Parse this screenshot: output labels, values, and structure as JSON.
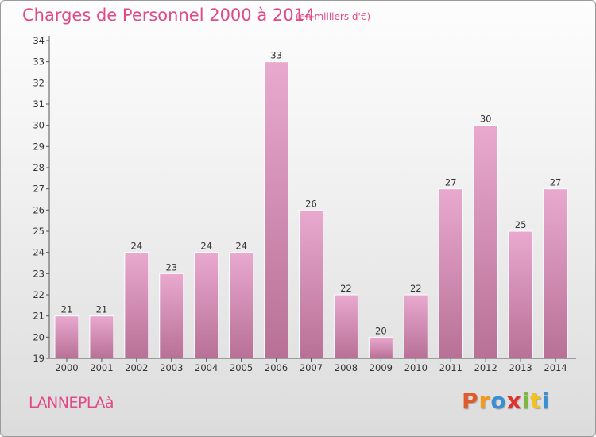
{
  "title": "Charges de Personnel 2000 à 2014",
  "subtitle": "(en milliers d'€)",
  "commune": "LANNEPLAà",
  "brand": {
    "letters": [
      "P",
      "r",
      "o",
      "x",
      "i",
      "t",
      "i"
    ],
    "colors": [
      "#e05a2a",
      "#f29a1f",
      "#3a8fd1",
      "#e0312f",
      "#7cb83b",
      "#f2c21f",
      "#3a8fd1"
    ]
  },
  "colors": {
    "bar_top": "#e9a9cf",
    "bar_bottom": "#b87096",
    "text": "#e04a87"
  },
  "chart_data": {
    "type": "bar",
    "categories": [
      "2000",
      "2001",
      "2002",
      "2003",
      "2004",
      "2005",
      "2006",
      "2007",
      "2008",
      "2009",
      "2010",
      "2011",
      "2012",
      "2013",
      "2014"
    ],
    "values": [
      21,
      21,
      24,
      23,
      24,
      24,
      33,
      26,
      22,
      20,
      22,
      27,
      30,
      25,
      27
    ],
    "title": "Charges de Personnel 2000 à 2014",
    "subtitle": "(en milliers d'€)",
    "xlabel": "",
    "ylabel": "",
    "ylim": [
      19,
      34
    ],
    "yticks": [
      19,
      20,
      21,
      22,
      23,
      24,
      25,
      26,
      27,
      28,
      29,
      30,
      31,
      32,
      33,
      34
    ],
    "data_labels": true,
    "grid": false,
    "legend": "none"
  }
}
